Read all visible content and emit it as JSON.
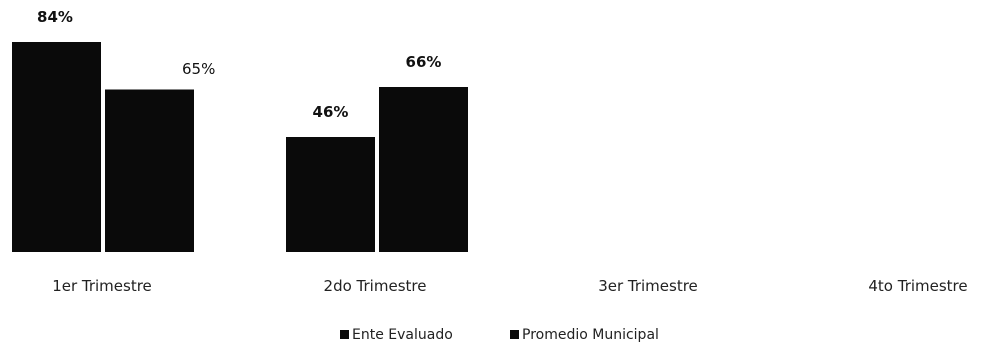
{
  "chart_data": {
    "type": "bar",
    "title": "",
    "xlabel": "",
    "ylabel": "",
    "categories": [
      "1er Trimestre",
      "2do Trimestre",
      "3er Trimestre",
      "4to Trimestre"
    ],
    "series": [
      {
        "name": "Ente Evaluado",
        "values": [
          84,
          46,
          null,
          null
        ],
        "labels": [
          "84%",
          "46%",
          "",
          ""
        ],
        "color": "#0a0a0a"
      },
      {
        "name": "Promedio Municipal",
        "values": [
          65,
          66,
          null,
          null
        ],
        "labels": [
          "65%",
          "66%",
          "",
          ""
        ],
        "color": "#0a0a0a"
      }
    ],
    "ylim": [
      0,
      84
    ],
    "grid": false,
    "legend_position": "bottom"
  }
}
